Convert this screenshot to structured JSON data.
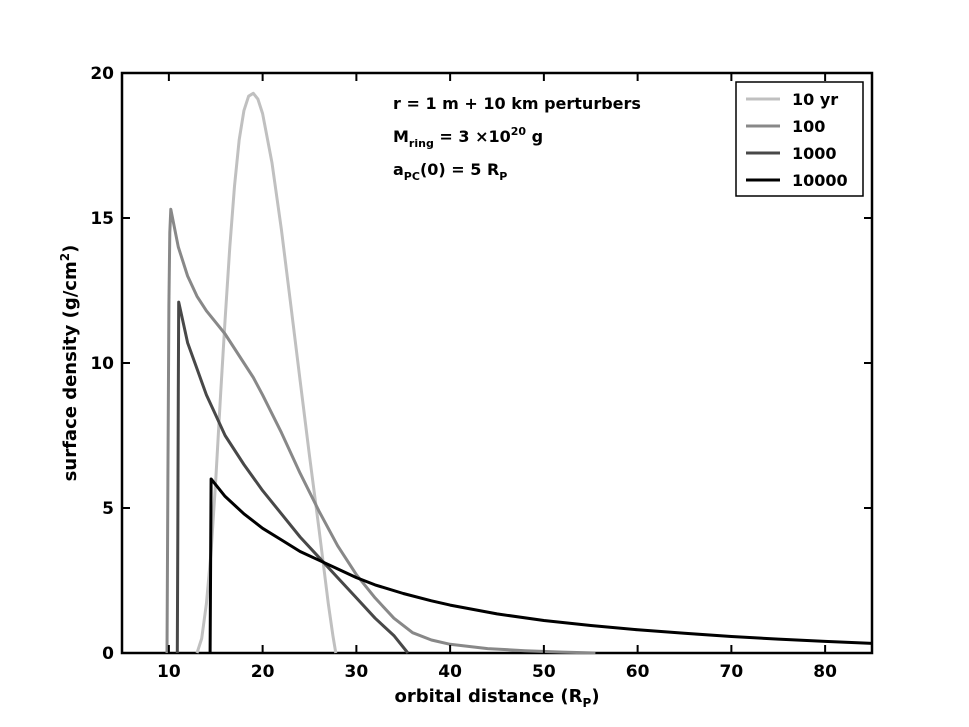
{
  "chart_data": {
    "type": "line",
    "xlabel_main": "orbital distance (R",
    "xlabel_sub": "P",
    "xlabel_end": ")",
    "ylabel_main": "surface density (g/cm",
    "ylabel_sup": "2",
    "ylabel_end": ")",
    "xlim": [
      5,
      85
    ],
    "ylim": [
      0,
      20
    ],
    "x_ticks": [
      10,
      20,
      30,
      40,
      50,
      60,
      70,
      80
    ],
    "x_tick_labels": [
      "10",
      "20",
      "30",
      "40",
      "50",
      "60",
      "70",
      "80"
    ],
    "y_ticks": [
      0,
      5,
      10,
      15,
      20
    ],
    "y_tick_labels": [
      "0",
      "5",
      "10",
      "15",
      "20"
    ],
    "grid": false,
    "legend_position": "top-right",
    "annotations": {
      "line1": "r = 1 m + 10 km perturbers",
      "line2_main": "M",
      "line2_sub": "ring",
      "line2_mid": " = 3 ×10",
      "line2_sup": "20",
      "line2_end": " g",
      "line3_main": "a",
      "line3_sub": "PC",
      "line3_mid": "(0) = 5 R",
      "line3_sub2": "P"
    },
    "series": [
      {
        "name": "10 yr",
        "color": "#c0c0c0",
        "points": [
          [
            13.0,
            0
          ],
          [
            13.5,
            0.5
          ],
          [
            14,
            1.7
          ],
          [
            14.5,
            3.5
          ],
          [
            15,
            6.0
          ],
          [
            15.5,
            8.8
          ],
          [
            16,
            11.5
          ],
          [
            16.5,
            14.0
          ],
          [
            17,
            16.1
          ],
          [
            17.5,
            17.7
          ],
          [
            18,
            18.7
          ],
          [
            18.5,
            19.2
          ],
          [
            19,
            19.3
          ],
          [
            19.5,
            19.1
          ],
          [
            20,
            18.6
          ],
          [
            21,
            16.9
          ],
          [
            22,
            14.6
          ],
          [
            23,
            12.0
          ],
          [
            24,
            9.4
          ],
          [
            25,
            6.8
          ],
          [
            26,
            4.3
          ],
          [
            26.5,
            3.0
          ],
          [
            27,
            1.7
          ],
          [
            27.5,
            0.6
          ],
          [
            27.8,
            0
          ]
        ]
      },
      {
        "name": "100",
        "color": "#888888",
        "points": [
          [
            9.8,
            0
          ],
          [
            9.9,
            6
          ],
          [
            10.0,
            12
          ],
          [
            10.1,
            14.5
          ],
          [
            10.2,
            15.3
          ],
          [
            11,
            14.0
          ],
          [
            12,
            13.0
          ],
          [
            13,
            12.3
          ],
          [
            14,
            11.8
          ],
          [
            15,
            11.4
          ],
          [
            16,
            11.0
          ],
          [
            17,
            10.5
          ],
          [
            18,
            10.0
          ],
          [
            19,
            9.5
          ],
          [
            20,
            8.9
          ],
          [
            22,
            7.6
          ],
          [
            24,
            6.2
          ],
          [
            26,
            4.9
          ],
          [
            28,
            3.7
          ],
          [
            30,
            2.7
          ],
          [
            32,
            1.9
          ],
          [
            34,
            1.2
          ],
          [
            36,
            0.7
          ],
          [
            38,
            0.45
          ],
          [
            40,
            0.3
          ],
          [
            44,
            0.15
          ],
          [
            48,
            0.08
          ],
          [
            52,
            0.03
          ],
          [
            55.5,
            0
          ]
        ]
      },
      {
        "name": "1000",
        "color": "#484848",
        "points": [
          [
            10.9,
            0
          ],
          [
            10.95,
            4
          ],
          [
            11.0,
            9
          ],
          [
            11.05,
            12.1
          ],
          [
            12,
            10.7
          ],
          [
            13,
            9.8
          ],
          [
            14,
            8.9
          ],
          [
            15,
            8.2
          ],
          [
            16,
            7.5
          ],
          [
            18,
            6.5
          ],
          [
            20,
            5.6
          ],
          [
            22,
            4.8
          ],
          [
            24,
            4.0
          ],
          [
            26,
            3.3
          ],
          [
            28,
            2.6
          ],
          [
            30,
            1.9
          ],
          [
            32,
            1.2
          ],
          [
            34,
            0.6
          ],
          [
            35.5,
            0
          ]
        ]
      },
      {
        "name": "10000",
        "color": "#000000",
        "points": [
          [
            14.4,
            0
          ],
          [
            14.45,
            3
          ],
          [
            14.5,
            6.0
          ],
          [
            15,
            5.8
          ],
          [
            16,
            5.4
          ],
          [
            18,
            4.8
          ],
          [
            20,
            4.3
          ],
          [
            22,
            3.9
          ],
          [
            24,
            3.5
          ],
          [
            26,
            3.2
          ],
          [
            28,
            2.9
          ],
          [
            30,
            2.6
          ],
          [
            32,
            2.35
          ],
          [
            35,
            2.05
          ],
          [
            38,
            1.8
          ],
          [
            40,
            1.65
          ],
          [
            45,
            1.35
          ],
          [
            50,
            1.12
          ],
          [
            55,
            0.95
          ],
          [
            60,
            0.8
          ],
          [
            65,
            0.68
          ],
          [
            70,
            0.57
          ],
          [
            75,
            0.48
          ],
          [
            80,
            0.4
          ],
          [
            85,
            0.33
          ]
        ]
      }
    ]
  }
}
